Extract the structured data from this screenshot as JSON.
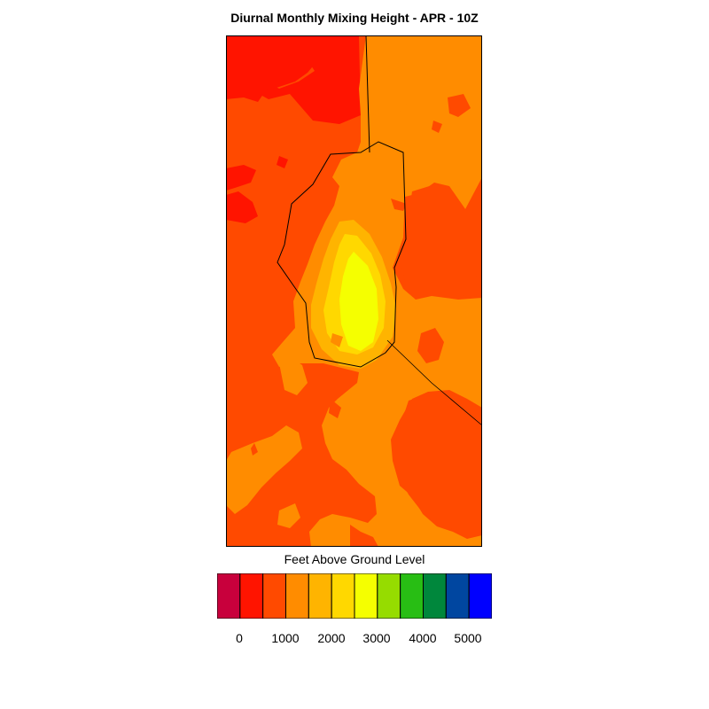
{
  "title": "Diurnal Monthly Mixing Height - APR - 10Z",
  "legend": {
    "title": "Feet Above Ground Level",
    "tick_labels": [
      "0",
      "1000",
      "2000",
      "3000",
      "4000",
      "5000"
    ],
    "colors": [
      "#c8003c",
      "#ff1400",
      "#ff4a00",
      "#ff8c00",
      "#ffb400",
      "#ffd800",
      "#f5ff00",
      "#96dc00",
      "#28be14",
      "#00873c",
      "#0046a0",
      "#0000ff"
    ]
  },
  "map": {
    "levels": {
      "below_0": "#c8003c",
      "0_500": "#ff1400",
      "500_1000": "#ff4a00",
      "1000_1500": "#ff8c00",
      "1500_2000": "#ffb400",
      "2000_2500": "#ffd800",
      "2500_3000": "#f5ff00"
    },
    "boundary_color": "#000000"
  }
}
